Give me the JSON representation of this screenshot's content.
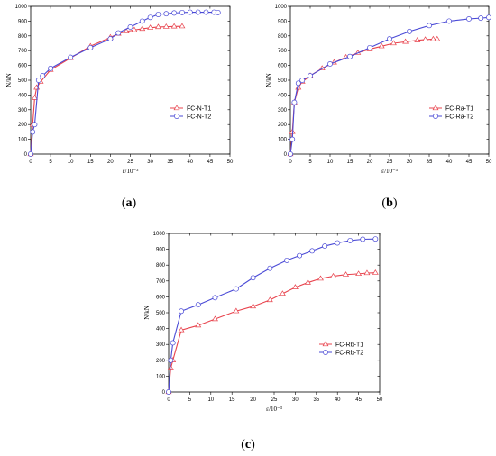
{
  "colors": {
    "t1": "#e8434d",
    "t2": "#4a4ad6"
  },
  "chart_data": [
    {
      "type": "line",
      "panel_label": "(a)",
      "xlabel": "ε/10⁻³",
      "ylabel": "N/kN",
      "xlim": [
        0,
        50
      ],
      "ylim": [
        0,
        1000
      ],
      "xticks": [
        0,
        5,
        10,
        15,
        20,
        25,
        30,
        35,
        40,
        45,
        50
      ],
      "yticks": [
        0,
        100,
        200,
        300,
        400,
        500,
        600,
        700,
        800,
        900,
        1000
      ],
      "legend_position": "bottom-right",
      "series": [
        {
          "name": "FC-N-T1",
          "color": "#e8434d",
          "x": [
            0,
            0.5,
            1,
            1.5,
            2.5,
            5,
            10,
            15,
            20,
            22,
            24,
            26,
            28,
            30,
            32,
            34,
            36,
            38
          ],
          "y": [
            0,
            200,
            380,
            450,
            490,
            570,
            650,
            730,
            790,
            815,
            830,
            840,
            848,
            855,
            860,
            862,
            864,
            865
          ]
        },
        {
          "name": "FC-N-T2",
          "color": "#4a4ad6",
          "x": [
            0,
            0.5,
            1,
            2,
            3,
            5,
            10,
            15,
            20,
            22,
            25,
            28,
            30,
            32,
            34,
            36,
            38,
            40,
            42,
            44,
            46,
            47
          ],
          "y": [
            0,
            150,
            200,
            500,
            530,
            580,
            655,
            720,
            780,
            820,
            860,
            900,
            925,
            945,
            950,
            955,
            958,
            960,
            960,
            960,
            960,
            958
          ]
        }
      ]
    },
    {
      "type": "line",
      "panel_label": "(b)",
      "xlabel": "ε/10⁻³",
      "ylabel": "N/kN",
      "xlim": [
        0,
        50
      ],
      "ylim": [
        0,
        1000
      ],
      "xticks": [
        0,
        5,
        10,
        15,
        20,
        25,
        30,
        35,
        40,
        45,
        50
      ],
      "yticks": [
        0,
        100,
        200,
        300,
        400,
        500,
        600,
        700,
        800,
        900,
        1000
      ],
      "legend_position": "bottom-right",
      "series": [
        {
          "name": "FC-Ra-T1",
          "color": "#e8434d",
          "x": [
            0,
            0.5,
            1,
            2,
            3,
            5,
            8,
            11,
            14,
            17,
            20,
            23,
            26,
            29,
            32,
            34,
            36,
            37
          ],
          "y": [
            0,
            150,
            350,
            450,
            490,
            530,
            580,
            620,
            655,
            685,
            710,
            730,
            750,
            760,
            770,
            775,
            778,
            778
          ]
        },
        {
          "name": "FC-Ra-T2",
          "color": "#4a4ad6",
          "x": [
            0,
            0.5,
            1,
            2,
            3,
            5,
            10,
            15,
            20,
            25,
            30,
            35,
            40,
            45,
            48,
            50
          ],
          "y": [
            0,
            100,
            350,
            480,
            500,
            530,
            610,
            660,
            720,
            780,
            830,
            870,
            900,
            915,
            920,
            925
          ]
        }
      ]
    },
    {
      "type": "line",
      "panel_label": "(c)",
      "xlabel": "ε/10⁻³",
      "ylabel": "N/kN",
      "xlim": [
        0,
        50
      ],
      "ylim": [
        0,
        1000
      ],
      "xticks": [
        0,
        5,
        10,
        15,
        20,
        25,
        30,
        35,
        40,
        45,
        50
      ],
      "yticks": [
        0,
        100,
        200,
        300,
        400,
        500,
        600,
        700,
        800,
        900,
        1000
      ],
      "legend_position": "bottom-right",
      "series": [
        {
          "name": "FC-Rb-T1",
          "color": "#e8434d",
          "x": [
            0,
            0.5,
            1,
            3,
            7,
            11,
            16,
            20,
            24,
            27,
            30,
            33,
            36,
            39,
            42,
            45,
            47,
            49
          ],
          "y": [
            0,
            150,
            200,
            390,
            420,
            460,
            510,
            540,
            580,
            620,
            660,
            690,
            715,
            730,
            740,
            745,
            750,
            752
          ]
        },
        {
          "name": "FC-Rb-T2",
          "color": "#4a4ad6",
          "x": [
            0,
            0.5,
            1,
            3,
            7,
            11,
            16,
            20,
            24,
            28,
            31,
            34,
            37,
            40,
            43,
            46,
            49
          ],
          "y": [
            0,
            200,
            310,
            510,
            550,
            595,
            650,
            720,
            780,
            830,
            860,
            890,
            920,
            940,
            955,
            963,
            965
          ]
        }
      ]
    }
  ]
}
